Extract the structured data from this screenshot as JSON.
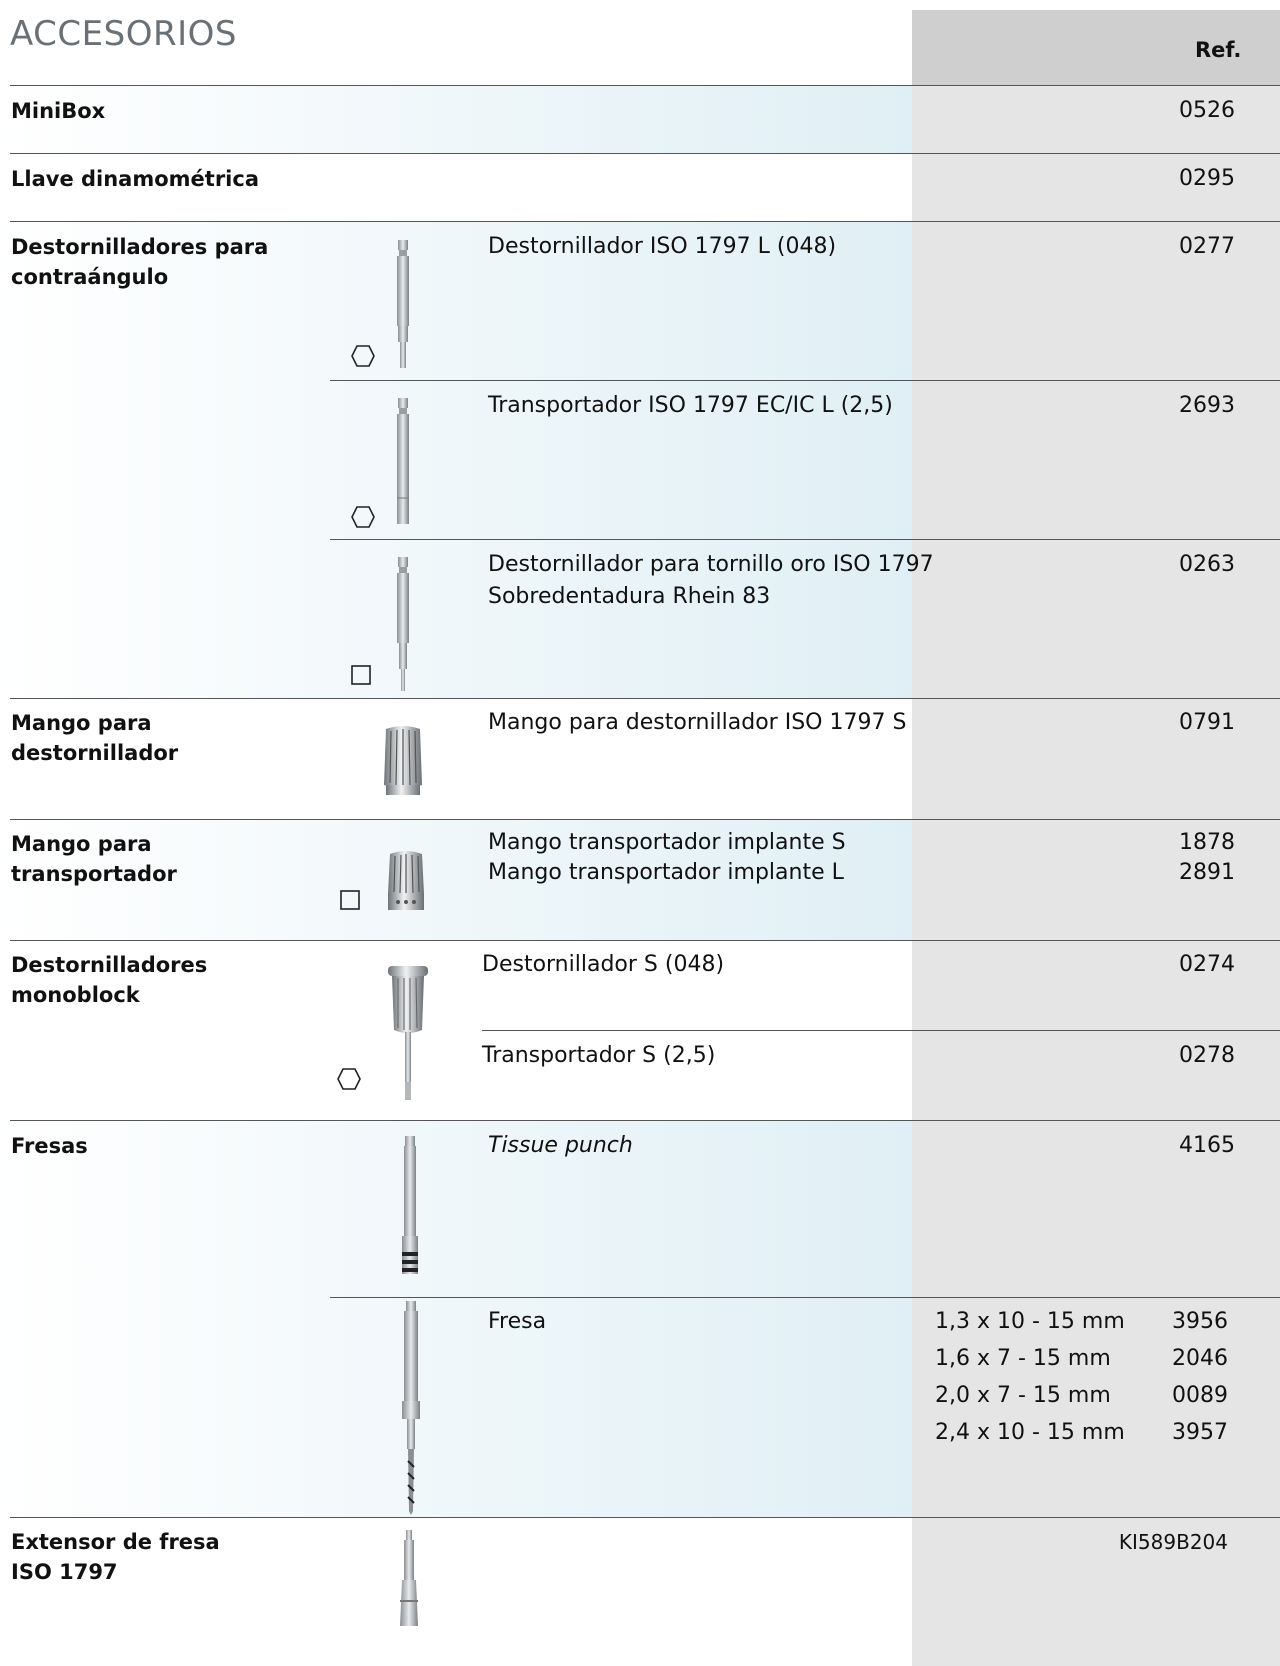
{
  "header": {
    "title": "ACCESORIOS",
    "ref_label": "Ref."
  },
  "rows": {
    "minibox": {
      "category": "MiniBox",
      "ref": "0526"
    },
    "llave": {
      "category": "Llave dinamométrica",
      "ref": "0295"
    },
    "destornilladores_contra": {
      "category_line1": "Destornilladores para",
      "category_line2": "contraángulo",
      "items": [
        {
          "desc": "Destornillador ISO 1797 L (048)",
          "ref": "0277",
          "symbol": "hexagon-icon"
        },
        {
          "desc": "Transportador ISO 1797 EC/IC L (2,5)",
          "ref": "2693",
          "symbol": "hexagon-icon"
        },
        {
          "desc_line1": "Destornillador para tornillo oro ISO 1797",
          "desc_line2": "Sobredentadura Rhein 83",
          "ref": "0263",
          "symbol": "square-icon"
        }
      ]
    },
    "mango_destornillador": {
      "category_line1": "Mango para",
      "category_line2": "destornillador",
      "desc": "Mango para destornillador ISO 1797 S",
      "ref": "0791"
    },
    "mango_transportador": {
      "category_line1": "Mango para",
      "category_line2": "transportador",
      "desc_line1": "Mango transportador implante S",
      "ref1": "1878",
      "desc_line2": "Mango transportador implante L",
      "ref2": "2891",
      "symbol": "square-icon"
    },
    "monoblock": {
      "category_line1": "Destornilladores",
      "category_line2": "monoblock",
      "items": [
        {
          "desc": "Destornillador S (048)",
          "ref": "0274"
        },
        {
          "desc": "Transportador S (2,5)",
          "ref": "0278"
        }
      ],
      "symbol": "hexagon-icon"
    },
    "fresas": {
      "category": "Fresas",
      "tissue_punch": {
        "desc": "Tissue punch",
        "ref": "4165"
      },
      "fresa": {
        "desc": "Fresa",
        "sizes": [
          {
            "size": "1,3 x 10 - 15 mm",
            "ref": "3956"
          },
          {
            "size": "1,6 x 7 - 15 mm",
            "ref": "2046"
          },
          {
            "size": "2,0 x 7 - 15 mm",
            "ref": "0089"
          },
          {
            "size": "2,4 x 10 - 15 mm",
            "ref": "3957"
          }
        ]
      }
    },
    "extensor": {
      "category_line1": "Extensor de fresa",
      "category_line2": "ISO 1797",
      "ref": "KI589B204"
    }
  },
  "colors": {
    "ref_column": "#e5e5e5",
    "ref_header": "#cfcfcf",
    "band_end": "#e0eff5",
    "title": "#6a7176"
  }
}
